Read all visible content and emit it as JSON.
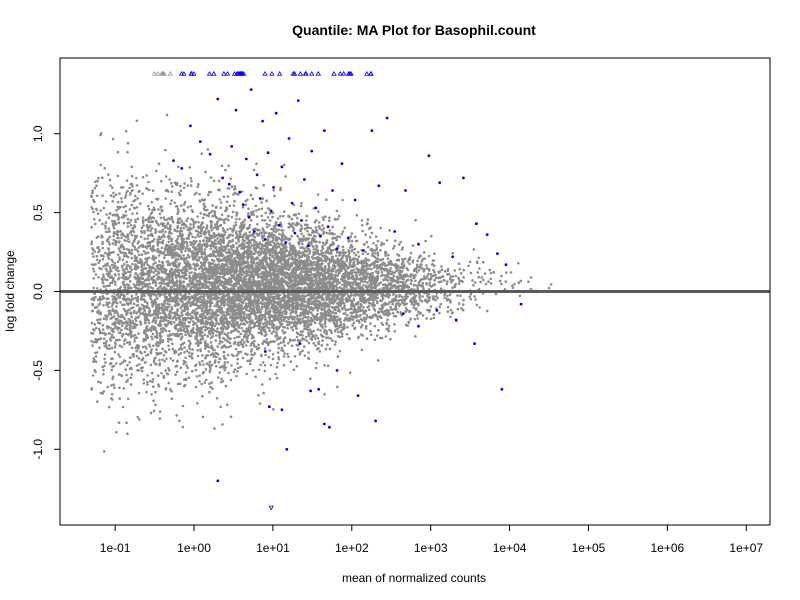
{
  "chart_data": {
    "type": "scatter",
    "title": "Quantile: MA Plot for Basophil.count",
    "xlabel": "mean of normalized counts",
    "ylabel": "log fold change",
    "x_scale": "log10",
    "xlim": [
      0.02,
      20000000
    ],
    "ylim": [
      -1.48,
      1.48
    ],
    "x_ticks": [
      0.1,
      1,
      10,
      100,
      1000,
      10000,
      100000,
      1000000,
      10000000
    ],
    "x_tick_labels": [
      "1e-01",
      "1e+00",
      "1e+01",
      "1e+02",
      "1e+03",
      "1e+04",
      "1e+05",
      "1e+06",
      "1e+07"
    ],
    "y_ticks": [
      -1.0,
      -0.5,
      0.0,
      0.5,
      1.0
    ],
    "y_tick_labels": [
      "-1.0",
      "-0.5",
      "0.0",
      "0.5",
      "1.0"
    ],
    "reference_line": {
      "y": 0,
      "color": "#5a5a5a"
    },
    "grid": false,
    "colors": {
      "not_significant": "#8c8c8c",
      "significant": "#0000ff",
      "clipped_not_significant": "#999999"
    },
    "series": [
      {
        "name": "",
        "color": "#0000ff",
        "points": [
          [
            0.55,
            0.83
          ],
          [
            0.7,
            0.78
          ],
          [
            0.9,
            1.05
          ],
          [
            1.2,
            0.95
          ],
          [
            1.6,
            0.87
          ],
          [
            2.0,
            1.22
          ],
          [
            2.3,
            0.72
          ],
          [
            2.8,
            0.68
          ],
          [
            3.0,
            0.92
          ],
          [
            3.4,
            1.15
          ],
          [
            3.8,
            0.63
          ],
          [
            4.2,
            0.55
          ],
          [
            4.6,
            0.84
          ],
          [
            5.0,
            0.47
          ],
          [
            5.3,
            1.28
          ],
          [
            5.8,
            0.38
          ],
          [
            6.3,
            0.74
          ],
          [
            6.9,
            0.59
          ],
          [
            7.4,
            1.08
          ],
          [
            8.0,
            0.33
          ],
          [
            8.7,
            0.88
          ],
          [
            9.5,
            0.51
          ],
          [
            10.2,
            0.66
          ],
          [
            11.0,
            1.13
          ],
          [
            12.0,
            0.42
          ],
          [
            13.0,
            0.79
          ],
          [
            14.5,
            0.31
          ],
          [
            16.0,
            0.97
          ],
          [
            17.5,
            0.56
          ],
          [
            19.0,
            0.37
          ],
          [
            21.0,
            1.21
          ],
          [
            23.0,
            0.45
          ],
          [
            25.0,
            0.71
          ],
          [
            28.0,
            0.29
          ],
          [
            31.0,
            0.89
          ],
          [
            35.0,
            0.53
          ],
          [
            40.0,
            0.35
          ],
          [
            45.0,
            1.02
          ],
          [
            50.0,
            0.41
          ],
          [
            57.0,
            0.64
          ],
          [
            65.0,
            0.27
          ],
          [
            75.0,
            0.81
          ],
          [
            90.0,
            0.34
          ],
          [
            110.0,
            0.58
          ],
          [
            140.0,
            0.26
          ],
          [
            180.0,
            1.02
          ],
          [
            220.0,
            0.67
          ],
          [
            280.0,
            1.1
          ],
          [
            350.0,
            0.38
          ],
          [
            480.0,
            0.64
          ],
          [
            700.0,
            0.3
          ],
          [
            950.0,
            0.86
          ],
          [
            1300.0,
            0.69
          ],
          [
            1900.0,
            0.22
          ],
          [
            2600.0,
            0.72
          ],
          [
            3800.0,
            0.43
          ],
          [
            5200.0,
            0.36
          ],
          [
            7000.0,
            0.24
          ],
          [
            9000.0,
            0.17
          ],
          [
            8.0,
            -0.38
          ],
          [
            9.0,
            -0.73
          ],
          [
            13.0,
            -0.75
          ],
          [
            15.0,
            -1.0
          ],
          [
            22.0,
            -0.33
          ],
          [
            30.0,
            -0.63
          ],
          [
            38.0,
            -0.62
          ],
          [
            45.0,
            -0.84
          ],
          [
            52.0,
            -0.86
          ],
          [
            65.0,
            -0.5
          ],
          [
            120.0,
            -0.66
          ],
          [
            200.0,
            -0.82
          ],
          [
            450.0,
            -0.14
          ],
          [
            700.0,
            -0.22
          ],
          [
            1200.0,
            -0.12
          ],
          [
            2100.0,
            -0.18
          ],
          [
            3600.0,
            -0.33
          ],
          [
            8000.0,
            -0.62
          ],
          [
            14000.0,
            -0.08
          ],
          [
            2.0,
            -1.2
          ]
        ]
      }
    ]
  }
}
